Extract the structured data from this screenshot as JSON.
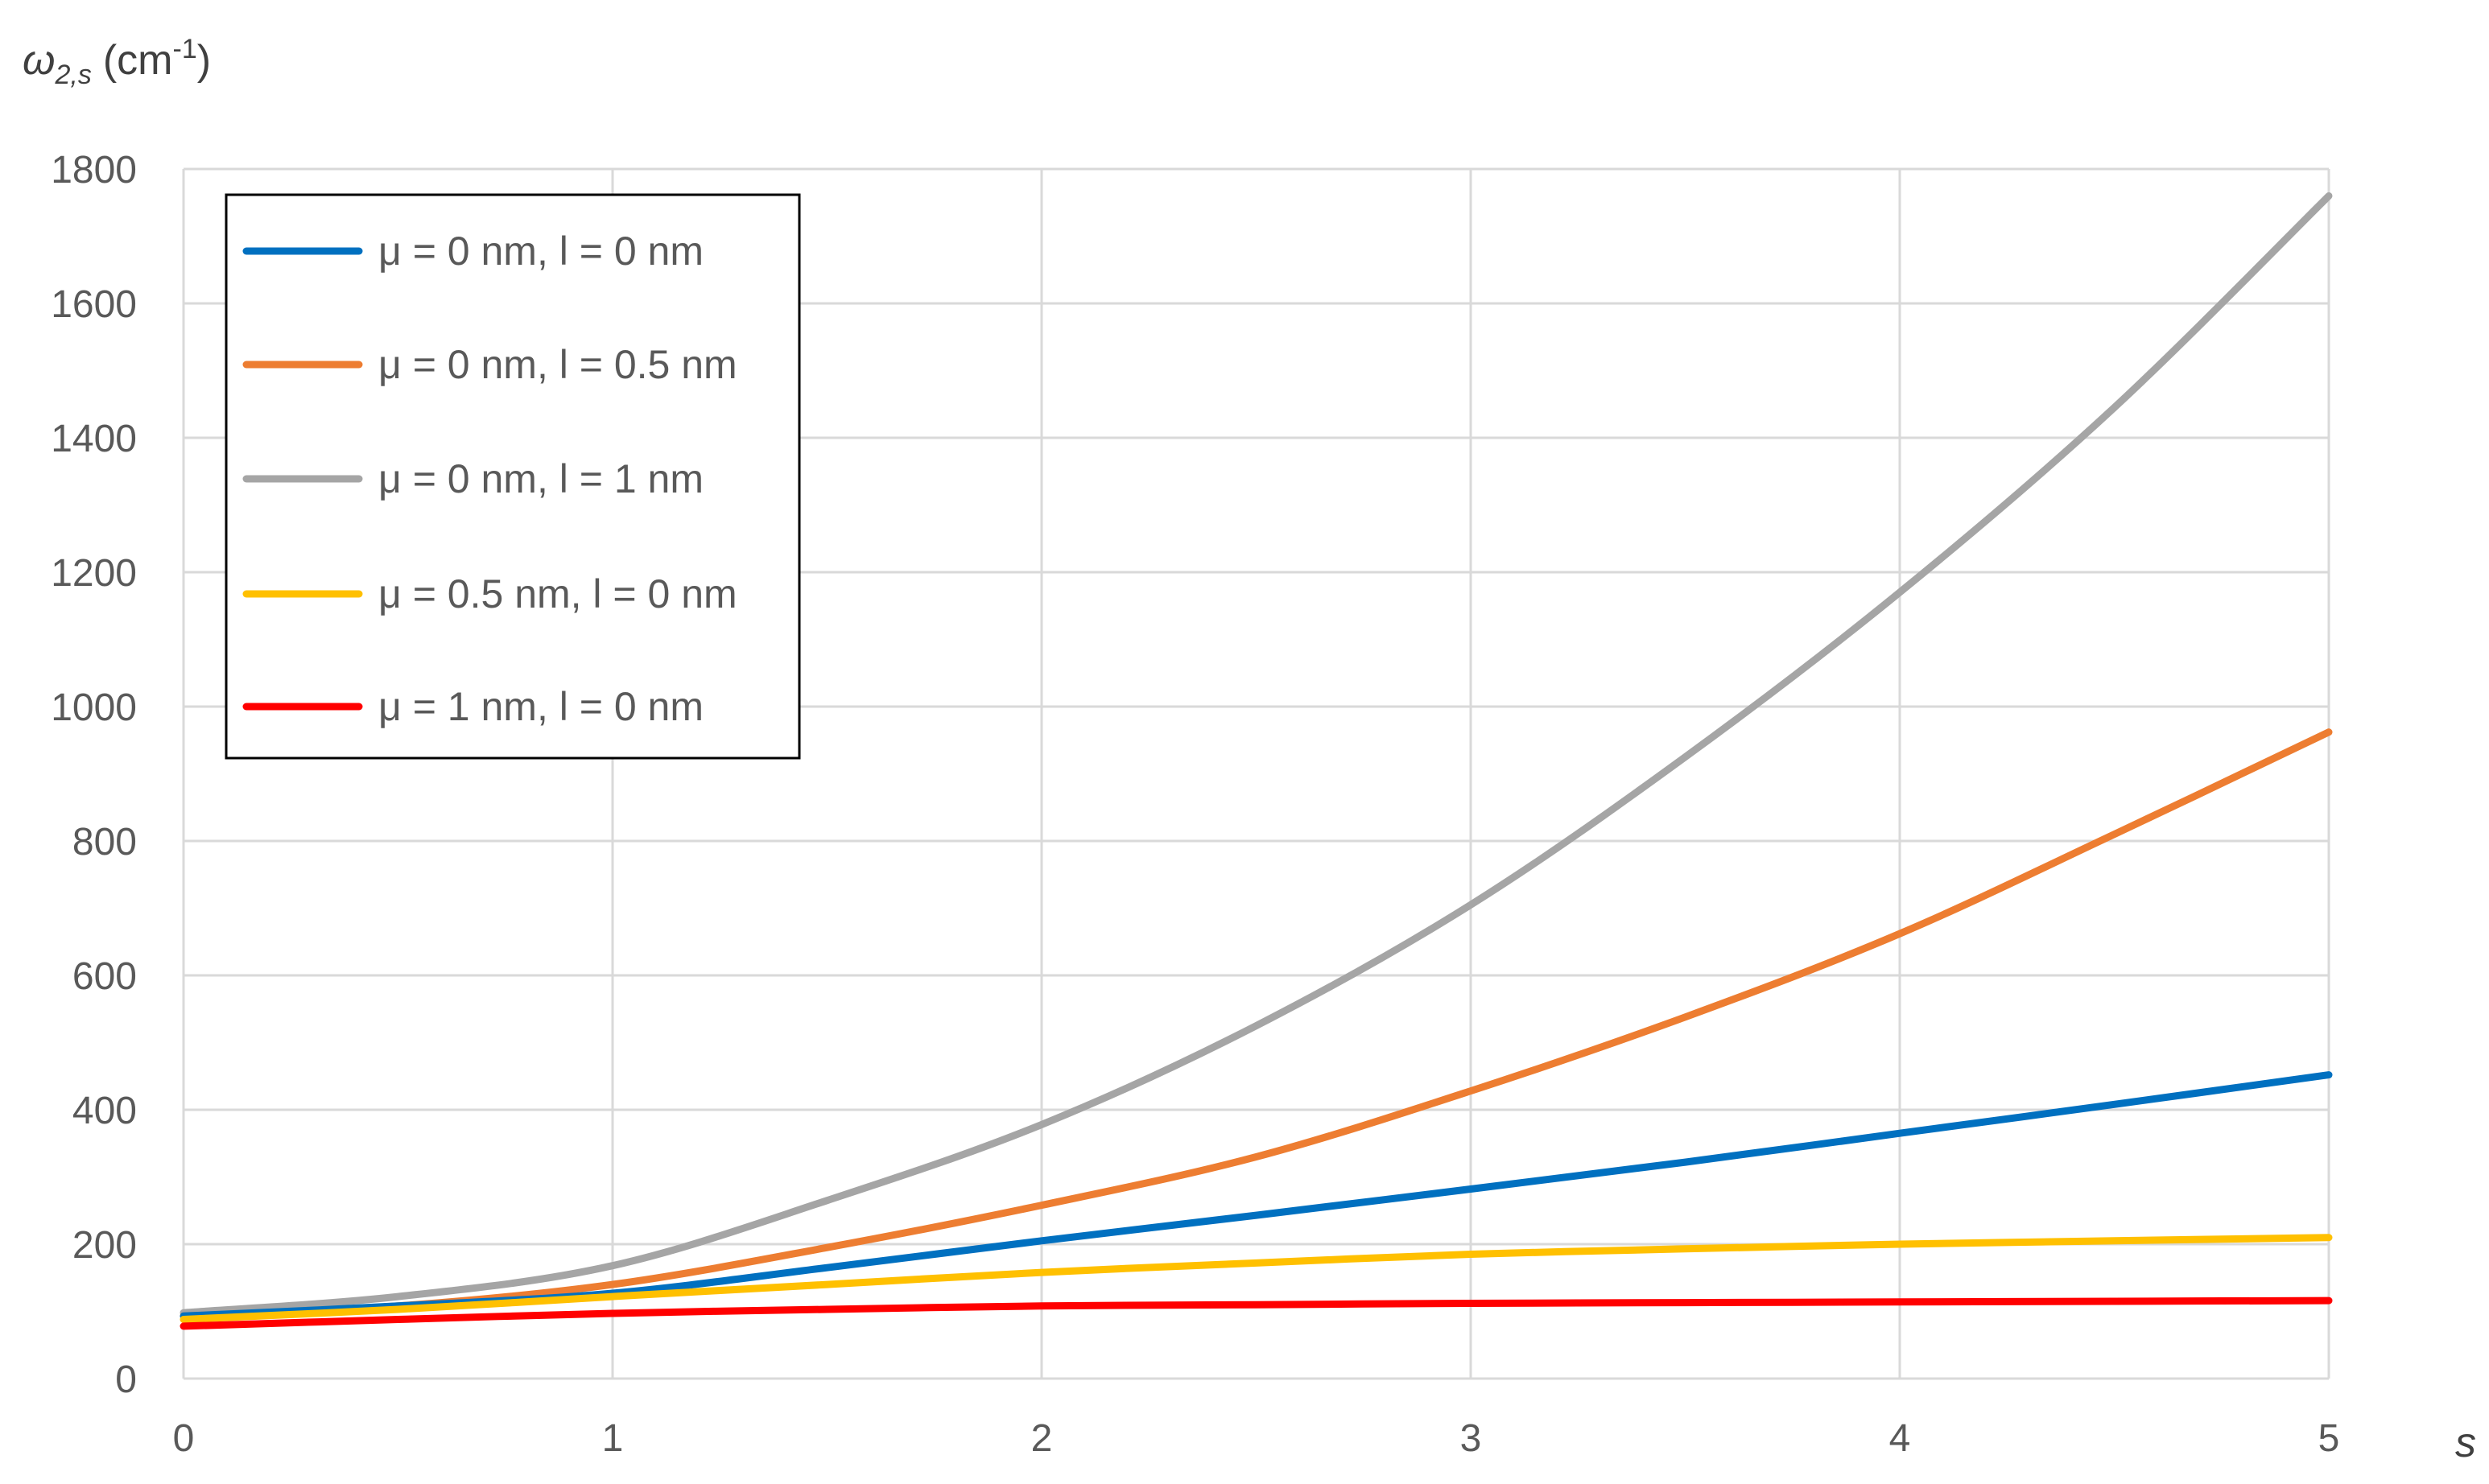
{
  "chart_data": {
    "type": "line",
    "ylabel": {
      "symbol": "ω",
      "subscript": "2,s",
      "unit_prefix": "(cm",
      "unit_exponent": "-1",
      "unit_suffix": ")"
    },
    "xlabel": "s",
    "xlim": [
      0,
      5
    ],
    "ylim": [
      0,
      1800
    ],
    "x_ticks": [
      "0",
      "1",
      "2",
      "3",
      "4",
      "5"
    ],
    "y_ticks": [
      "0",
      "200",
      "400",
      "600",
      "800",
      "1000",
      "1200",
      "1400",
      "1600",
      "1800"
    ],
    "grid": true,
    "legend_position": "top-left",
    "x": [
      0,
      0.5,
      1,
      1.5,
      2,
      2.5,
      3,
      3.5,
      4,
      4.5,
      5
    ],
    "series": [
      {
        "name": "μ = 0 nm, l = 0 nm",
        "color": "#0070C0",
        "values": [
          93,
          108,
          127,
          165,
          205,
          243,
          282,
          322,
          365,
          408,
          452
        ]
      },
      {
        "name": "μ = 0 nm, l = 0.5 nm",
        "color": "#ED7D31",
        "values": [
          93,
          108,
          140,
          195,
          258,
          330,
          428,
          538,
          662,
          810,
          962
        ]
      },
      {
        "name": "μ = 0 nm, l = 1 nm",
        "color": "#A5A5A5",
        "values": [
          98,
          122,
          168,
          265,
          378,
          525,
          705,
          925,
          1170,
          1445,
          1760
        ]
      },
      {
        "name": "μ = 0.5 nm, l = 0 nm",
        "color": "#FFC000",
        "values": [
          88,
          103,
          122,
          140,
          158,
          172,
          185,
          193,
          200,
          205,
          210
        ]
      },
      {
        "name": "μ = 1 nm, l = 0 nm",
        "color": "#FF0000",
        "values": [
          78,
          88,
          97,
          103,
          108,
          110,
          112,
          113,
          114,
          115,
          116
        ]
      }
    ]
  }
}
